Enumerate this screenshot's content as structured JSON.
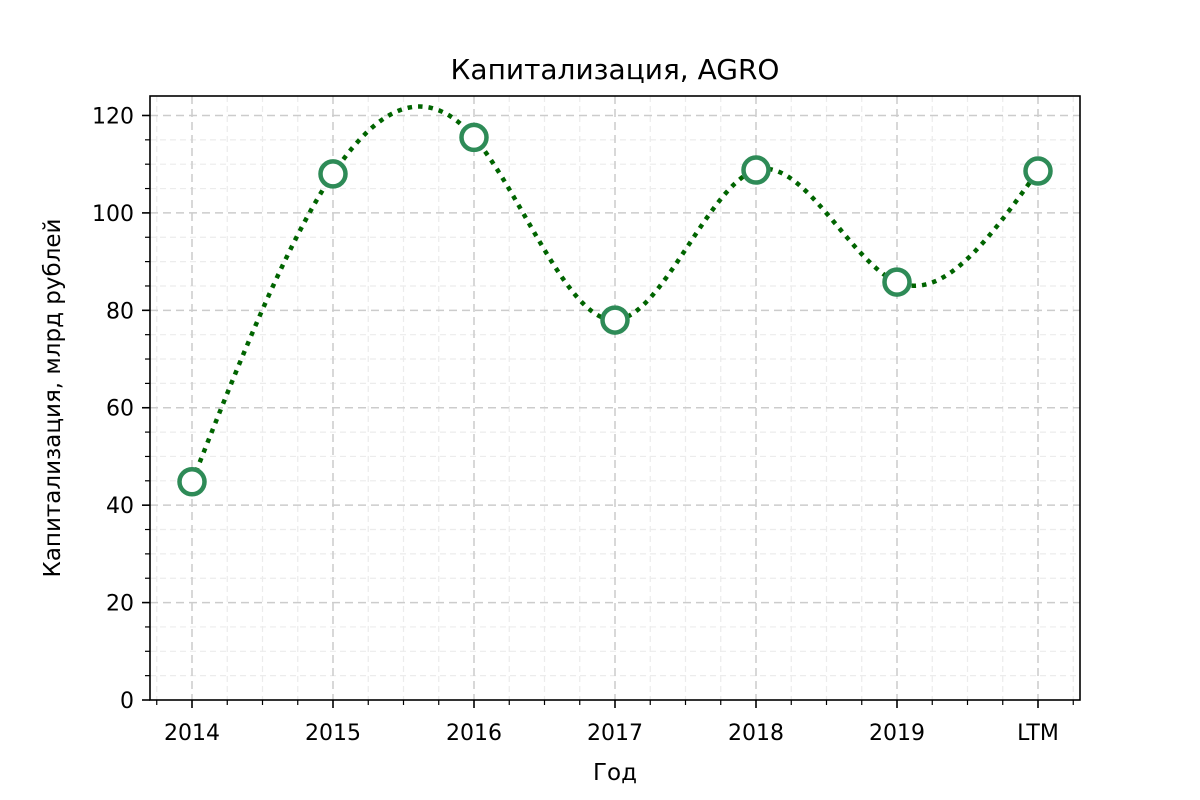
{
  "chart_data": {
    "type": "line",
    "title": "Капитализация, AGRO",
    "xlabel": "Год",
    "ylabel": "Капитализация, млрд рублей",
    "categories": [
      "2014",
      "2015",
      "2016",
      "2017",
      "2018",
      "2019",
      "LTM"
    ],
    "series": [
      {
        "values": [
          44.8,
          108.0,
          115.5,
          78.0,
          108.8,
          85.8,
          108.6
        ]
      }
    ],
    "ylim": [
      0,
      124
    ],
    "yticks": [
      0,
      20,
      40,
      60,
      80,
      100,
      120
    ],
    "grid": true,
    "line_style": "dotted, smoothed",
    "marker": "open circle",
    "colors": {
      "line": "#006400",
      "marker_edge": "#2e8b57",
      "grid_major": "#cccccc",
      "grid_minor": "#ececec"
    }
  }
}
